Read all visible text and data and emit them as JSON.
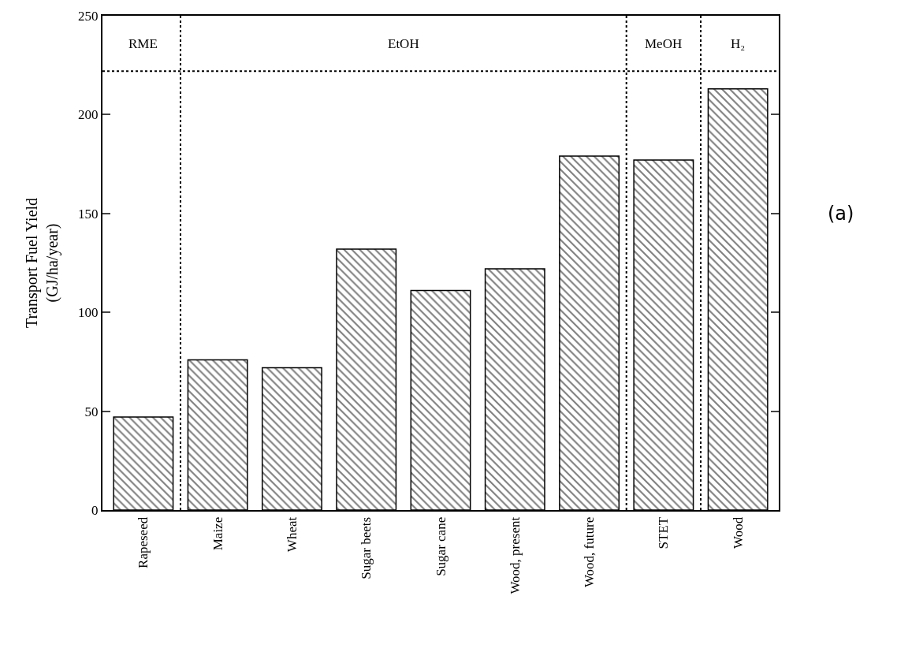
{
  "chart_data": {
    "type": "bar",
    "ylabel": "Transport Fuel Yield\n(GJ/ha/year)",
    "categories": [
      "Rapeseed",
      "Maize",
      "Wheat",
      "Sugar beets",
      "Sugar cane",
      "Wood, present",
      "Wood, future",
      "STET",
      "Wood"
    ],
    "values": [
      47,
      76,
      72,
      132,
      111,
      122,
      179,
      177,
      213
    ],
    "color": "#000000",
    "ylim": [
      0,
      250
    ],
    "yticks": [
      0,
      50,
      100,
      150,
      200,
      250
    ],
    "ref_lines": [
      {
        "axis": "y",
        "value": 222,
        "line_style": "dotted",
        "color": "#000000"
      }
    ],
    "annotations": [
      "RME",
      "EtOH",
      "MeOH",
      "H₂",
      "(a)"
    ]
  }
}
